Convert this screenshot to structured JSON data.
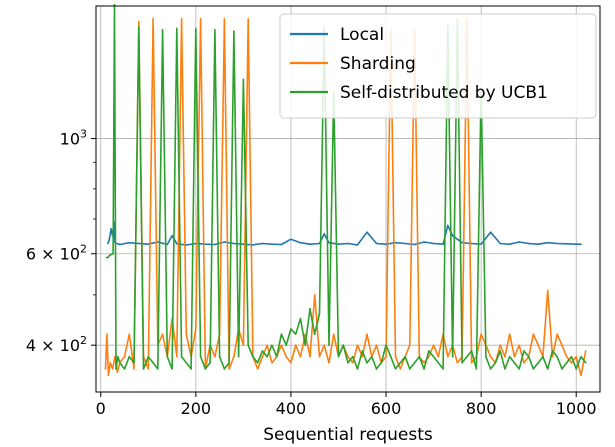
{
  "chart_data": {
    "type": "line",
    "title": "",
    "xlabel": "Sequential requests",
    "ylabel": "",
    "xlim": [
      -10,
      1050
    ],
    "ylim": [
      325,
      1800
    ],
    "yscale": "log",
    "grid": true,
    "legend_position": "top-right",
    "x_ticks": [
      {
        "value": 0,
        "label": "0"
      },
      {
        "value": 200,
        "label": "200"
      },
      {
        "value": 400,
        "label": "400"
      },
      {
        "value": 600,
        "label": "600"
      },
      {
        "value": 800,
        "label": "800"
      },
      {
        "value": 1000,
        "label": "1000"
      }
    ],
    "y_ticks": [
      {
        "value": 400,
        "base": "4",
        "exp": "2",
        "kind": "sci"
      },
      {
        "value": 600,
        "base": "6",
        "exp": "2",
        "kind": "sci"
      },
      {
        "value": 1000,
        "base": "10",
        "exp": "3",
        "kind": "pow"
      }
    ],
    "y_minor_ticks": [
      500,
      700,
      800,
      900
    ],
    "series": [
      {
        "name": "Local",
        "color": "#1f77b4",
        "x": [
          15,
          18,
          20,
          22,
          25,
          28,
          30,
          40,
          60,
          80,
          100,
          120,
          140,
          150,
          160,
          180,
          200,
          220,
          240,
          260,
          280,
          300,
          320,
          340,
          360,
          380,
          400,
          420,
          440,
          460,
          470,
          480,
          500,
          520,
          540,
          560,
          580,
          600,
          620,
          640,
          660,
          680,
          700,
          720,
          730,
          740,
          760,
          780,
          800,
          820,
          840,
          860,
          880,
          900,
          920,
          940,
          960,
          980,
          1000,
          1010
        ],
        "y": [
          628,
          640,
          655,
          670,
          650,
          690,
          630,
          625,
          630,
          628,
          626,
          632,
          625,
          650,
          627,
          624,
          628,
          626,
          625,
          632,
          628,
          626,
          624,
          628,
          626,
          625,
          640,
          630,
          626,
          628,
          655,
          630,
          626,
          628,
          624,
          660,
          628,
          626,
          630,
          628,
          625,
          632,
          628,
          626,
          680,
          650,
          630,
          628,
          626,
          660,
          628,
          626,
          632,
          628,
          626,
          630,
          628,
          627,
          626,
          626
        ]
      },
      {
        "name": "Sharding",
        "color": "#ff7f0e",
        "x": [
          10,
          13,
          16,
          20,
          25,
          30,
          35,
          40,
          50,
          60,
          70,
          80,
          90,
          100,
          110,
          120,
          130,
          140,
          150,
          160,
          170,
          180,
          190,
          200,
          210,
          220,
          230,
          240,
          250,
          260,
          270,
          280,
          290,
          300,
          310,
          320,
          330,
          340,
          350,
          360,
          370,
          380,
          390,
          400,
          410,
          420,
          430,
          440,
          450,
          460,
          470,
          480,
          490,
          500,
          510,
          520,
          530,
          540,
          550,
          560,
          570,
          580,
          590,
          600,
          610,
          620,
          630,
          640,
          650,
          660,
          670,
          680,
          690,
          700,
          710,
          720,
          730,
          740,
          750,
          760,
          770,
          780,
          790,
          800,
          810,
          820,
          830,
          840,
          850,
          860,
          870,
          880,
          890,
          900,
          910,
          920,
          930,
          940,
          950,
          960,
          970,
          980,
          990,
          1000,
          1010,
          1020
        ],
        "y": [
          360,
          420,
          350,
          370,
          360,
          380,
          355,
          370,
          380,
          420,
          360,
          1680,
          380,
          360,
          1700,
          400,
          420,
          380,
          450,
          380,
          1700,
          420,
          380,
          430,
          1700,
          360,
          400,
          380,
          420,
          1700,
          360,
          380,
          430,
          400,
          1700,
          380,
          360,
          380,
          400,
          370,
          380,
          400,
          380,
          370,
          400,
          380,
          420,
          380,
          500,
          380,
          400,
          370,
          420,
          380,
          400,
          380,
          370,
          400,
          380,
          420,
          380,
          400,
          370,
          380,
          1620,
          380,
          360,
          380,
          400,
          1620,
          380,
          370,
          380,
          400,
          380,
          420,
          380,
          400,
          370,
          380,
          1700,
          370,
          380,
          420,
          400,
          380,
          370,
          400,
          380,
          420,
          380,
          400,
          370,
          380,
          420,
          400,
          380,
          510,
          380,
          420,
          400,
          380,
          370,
          380,
          350,
          390
        ]
      },
      {
        "name": "Self-distributed by UCB1",
        "color": "#2ca02c",
        "x": [
          12,
          15,
          18,
          22,
          26,
          29,
          32,
          36,
          40,
          50,
          60,
          70,
          80,
          90,
          100,
          110,
          120,
          130,
          140,
          150,
          160,
          170,
          180,
          190,
          200,
          210,
          220,
          230,
          240,
          250,
          260,
          270,
          280,
          290,
          300,
          310,
          320,
          330,
          340,
          350,
          360,
          370,
          380,
          390,
          400,
          410,
          420,
          430,
          440,
          450,
          460,
          470,
          480,
          490,
          500,
          510,
          520,
          530,
          540,
          550,
          560,
          570,
          580,
          590,
          600,
          610,
          620,
          630,
          640,
          650,
          660,
          670,
          680,
          690,
          700,
          710,
          720,
          730,
          740,
          750,
          760,
          770,
          780,
          790,
          800,
          810,
          820,
          830,
          840,
          850,
          860,
          870,
          880,
          890,
          900,
          910,
          920,
          930,
          940,
          950,
          960,
          970,
          980,
          990,
          1000,
          1010,
          1020
        ],
        "y": [
          590,
          590,
          595,
          598,
          600,
          1810,
          360,
          380,
          370,
          360,
          380,
          370,
          1640,
          360,
          380,
          370,
          360,
          1620,
          380,
          360,
          1630,
          380,
          370,
          360,
          1630,
          380,
          360,
          370,
          1620,
          380,
          360,
          370,
          1610,
          380,
          1300,
          400,
          380,
          370,
          390,
          380,
          400,
          380,
          420,
          400,
          430,
          420,
          450,
          400,
          470,
          420,
          460,
          1640,
          400,
          1230,
          380,
          400,
          370,
          380,
          360,
          390,
          370,
          380,
          360,
          370,
          400,
          380,
          360,
          370,
          380,
          360,
          370,
          380,
          360,
          390,
          380,
          370,
          360,
          1650,
          380,
          1700,
          370,
          380,
          390,
          360,
          1250,
          380,
          360,
          370,
          390,
          360,
          380,
          370,
          360,
          390,
          380,
          360,
          370,
          380,
          360,
          390,
          380,
          360,
          370,
          380,
          360,
          380,
          370
        ]
      }
    ]
  }
}
